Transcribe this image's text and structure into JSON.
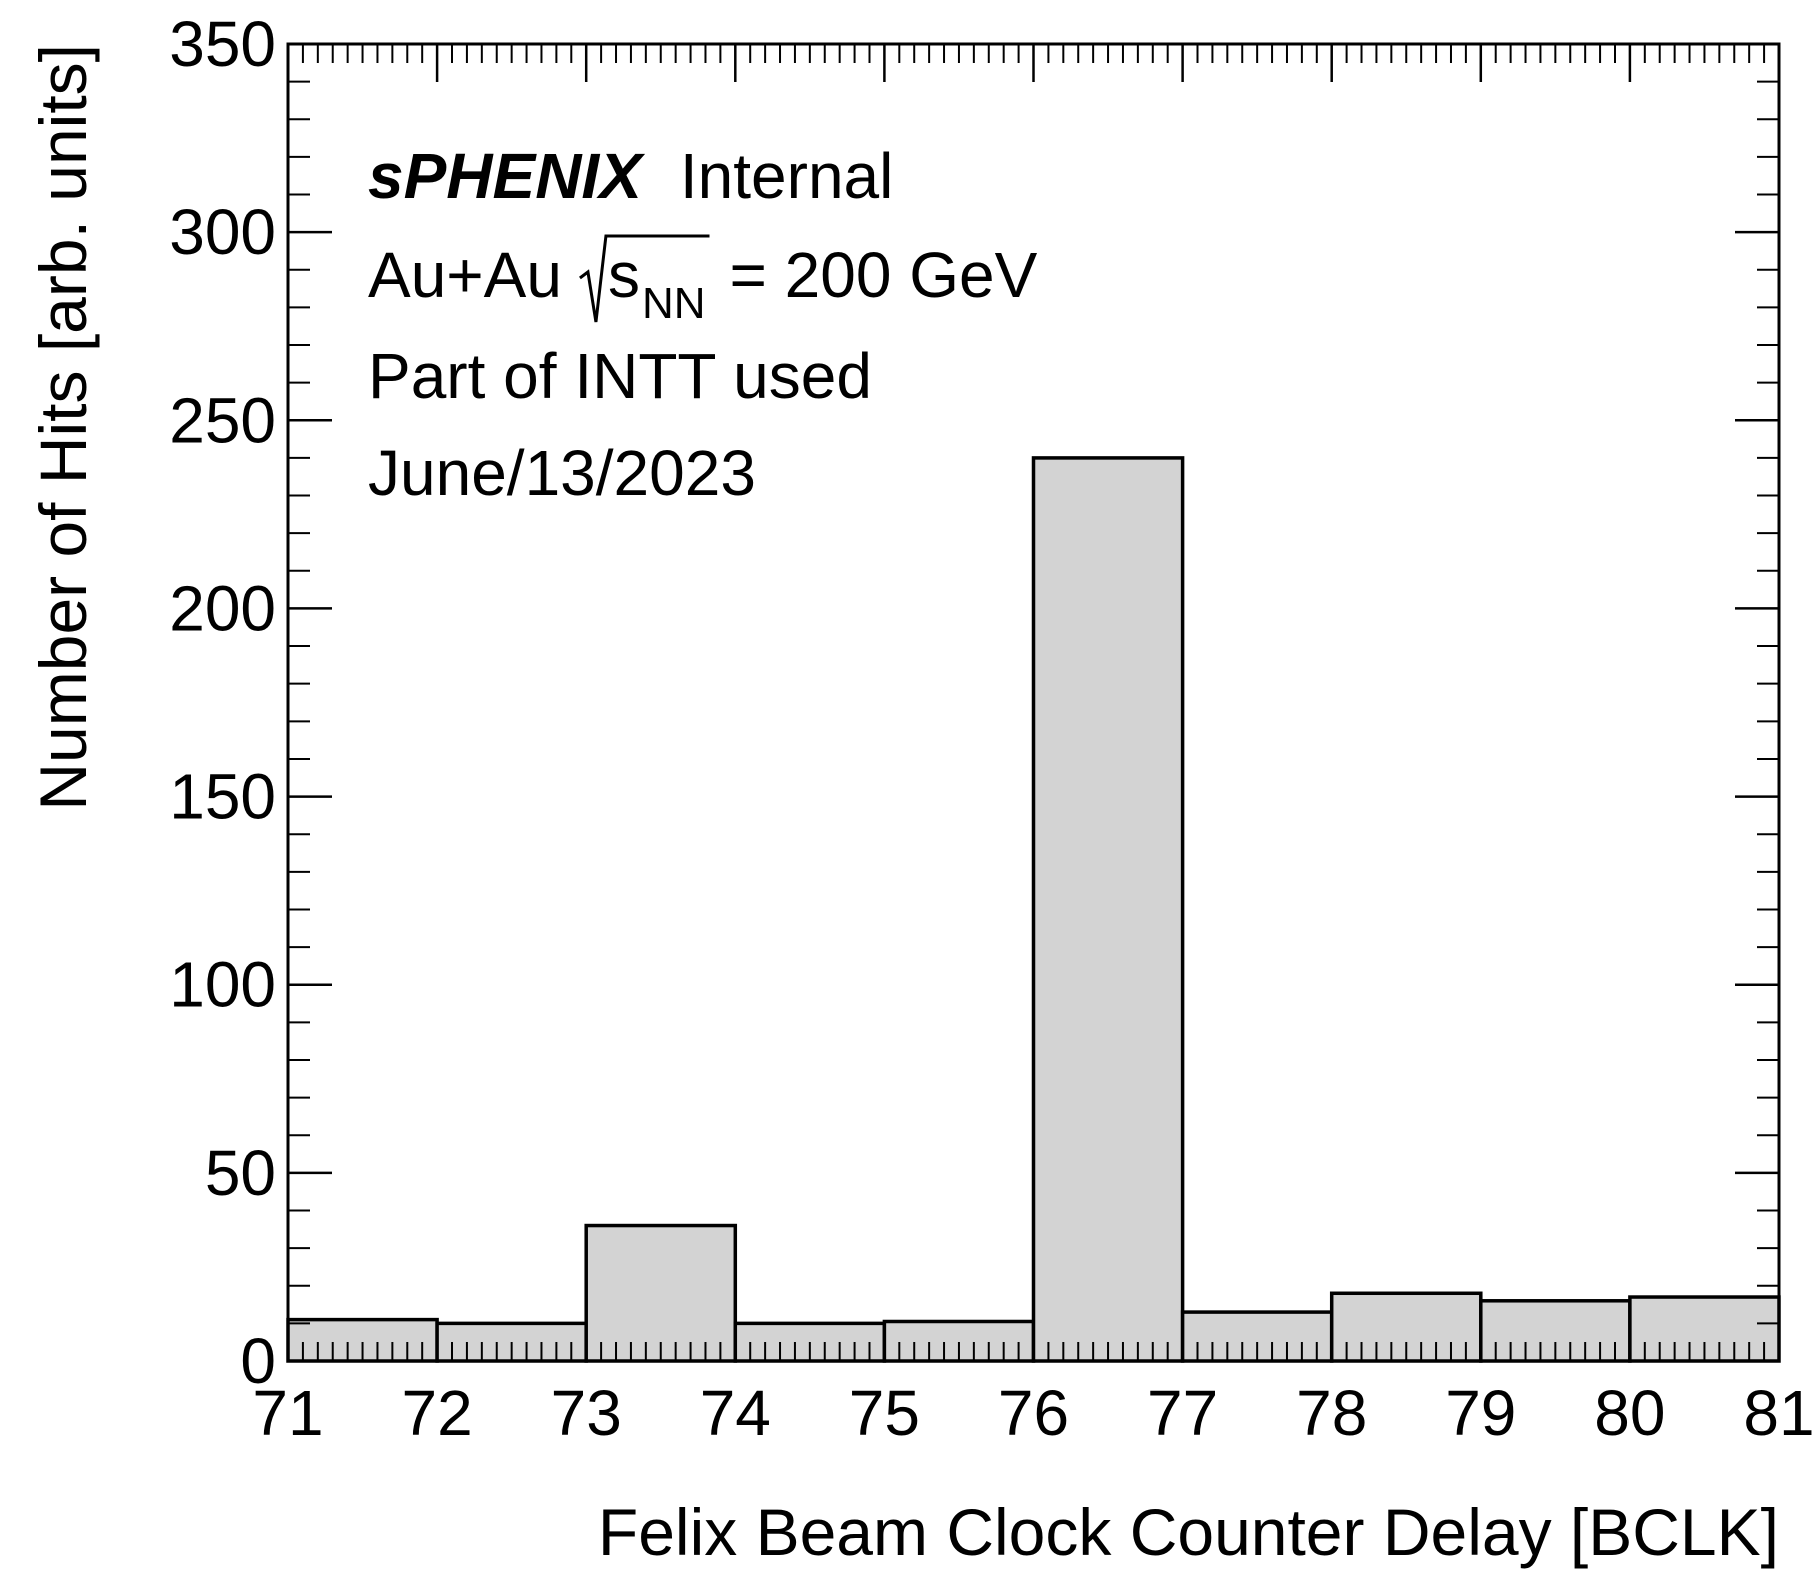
{
  "chart_data": {
    "type": "histogram",
    "x_label": "Felix Beam Clock Counter Delay [BCLK]",
    "y_label": "Number of Hits [arb. units]",
    "annotations": {
      "experiment": "sPHENIX",
      "status": "Internal",
      "system": "Au+Au",
      "energy_symbol": "s",
      "energy_subscript": "NN",
      "energy_value": "= 200 GeV",
      "detector": "Part of INTT used",
      "date": "June/13/2023"
    },
    "bins": [
      71,
      72,
      73,
      74,
      75,
      76,
      77,
      78,
      79,
      80,
      81
    ],
    "values": [
      11,
      10,
      36,
      10,
      10.5,
      240,
      13,
      18,
      16,
      17
    ],
    "color": "#d3d3d3",
    "xlim": [
      71,
      81
    ],
    "xticks": [
      71,
      72,
      73,
      74,
      75,
      76,
      77,
      78,
      79,
      80,
      81
    ],
    "ylim": [
      0,
      350
    ],
    "yticks": [
      0,
      50,
      100,
      150,
      200,
      250,
      300,
      350
    ]
  }
}
